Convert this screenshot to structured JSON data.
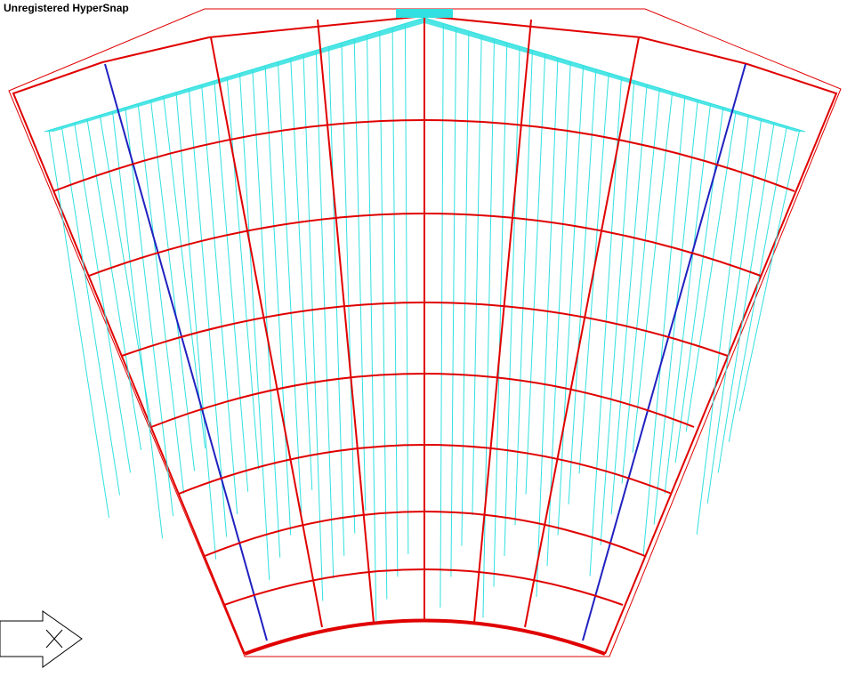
{
  "watermark": "Unregistered HyperSnap"
}
